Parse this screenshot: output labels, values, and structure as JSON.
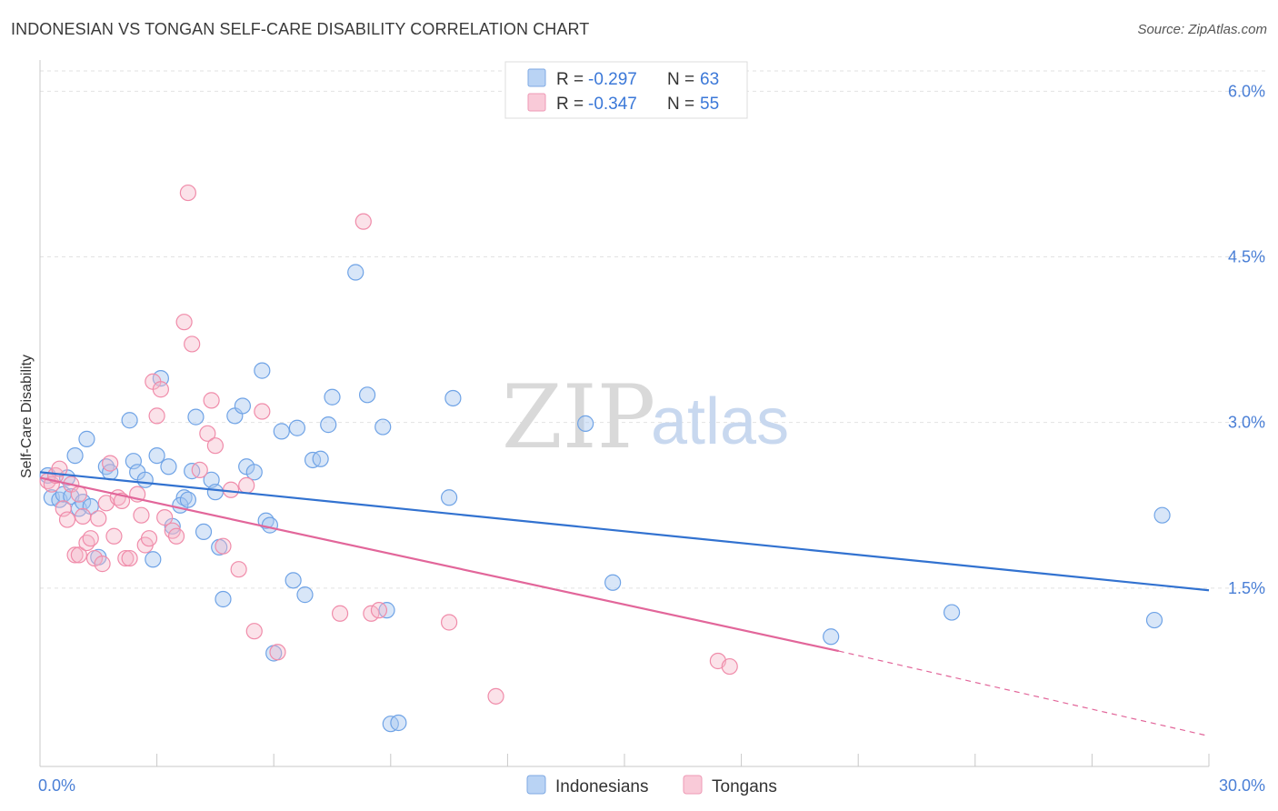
{
  "header": {
    "title": "INDONESIAN VS TONGAN SELF-CARE DISABILITY CORRELATION CHART",
    "source": "Source: ZipAtlas.com"
  },
  "watermark": {
    "zip": "ZIP",
    "atlas": "atlas"
  },
  "legend": {
    "rows": [
      {
        "r_label": "R = ",
        "r_value": "-0.297",
        "n_label": "N = ",
        "n_value": "63",
        "color": "#a9c8f0"
      },
      {
        "r_label": "R = ",
        "r_value": "-0.347",
        "n_label": "N = ",
        "n_value": "55",
        "color": "#f6b6c9"
      }
    ]
  },
  "bottom_legend": {
    "items": [
      "Indonesians",
      "Tongans"
    ]
  },
  "chart_data": {
    "type": "scatter",
    "title": "INDONESIAN VS TONGAN SELF-CARE DISABILITY CORRELATION CHART",
    "xlabel": "",
    "ylabel": "Self-Care Disability",
    "xlim": [
      0,
      30
    ],
    "ylim": [
      0,
      6.25
    ],
    "x_tick_labels": [
      "0.0%",
      "30.0%"
    ],
    "y_ticks": [
      1.5,
      3.0,
      4.5,
      6.0
    ],
    "y_tick_labels": [
      "1.5%",
      "3.0%",
      "4.5%",
      "6.0%"
    ],
    "grid": "horizontal dashed",
    "legend_position": "top-center",
    "colors": {
      "Indonesians": "#6fa3e6",
      "Tongans": "#f08caa",
      "Indonesians_line": "#3272d0",
      "Tongans_line": "#e2669a"
    },
    "series": [
      {
        "name": "Indonesians",
        "r": -0.297,
        "n": 63,
        "trend": {
          "x": [
            0,
            30
          ],
          "y": [
            2.55,
            1.48
          ]
        },
        "points": [
          [
            0.2,
            2.52
          ],
          [
            0.3,
            2.32
          ],
          [
            0.5,
            2.3
          ],
          [
            0.6,
            2.35
          ],
          [
            0.8,
            2.33
          ],
          [
            0.9,
            2.7
          ],
          [
            1.0,
            2.22
          ],
          [
            1.1,
            2.28
          ],
          [
            1.2,
            2.85
          ],
          [
            1.3,
            2.24
          ],
          [
            1.5,
            1.78
          ],
          [
            1.7,
            2.6
          ],
          [
            1.8,
            2.55
          ],
          [
            2.3,
            3.02
          ],
          [
            2.4,
            2.65
          ],
          [
            2.5,
            2.55
          ],
          [
            2.7,
            2.48
          ],
          [
            2.9,
            1.76
          ],
          [
            3.0,
            2.7
          ],
          [
            3.1,
            3.4
          ],
          [
            3.3,
            2.6
          ],
          [
            3.4,
            2.06
          ],
          [
            3.7,
            2.32
          ],
          [
            3.6,
            2.25
          ],
          [
            3.9,
            2.56
          ],
          [
            4.0,
            3.05
          ],
          [
            4.2,
            2.01
          ],
          [
            4.4,
            2.48
          ],
          [
            4.5,
            2.37
          ],
          [
            4.6,
            1.87
          ],
          [
            4.7,
            1.4
          ],
          [
            5.0,
            3.06
          ],
          [
            5.2,
            3.15
          ],
          [
            5.3,
            2.6
          ],
          [
            5.5,
            2.55
          ],
          [
            5.7,
            3.47
          ],
          [
            5.8,
            2.11
          ],
          [
            5.9,
            2.07
          ],
          [
            6.0,
            0.91
          ],
          [
            6.2,
            2.92
          ],
          [
            6.5,
            1.57
          ],
          [
            6.6,
            2.95
          ],
          [
            6.8,
            1.44
          ],
          [
            7.0,
            2.66
          ],
          [
            7.2,
            2.67
          ],
          [
            7.4,
            2.98
          ],
          [
            7.5,
            3.23
          ],
          [
            8.1,
            4.36
          ],
          [
            8.4,
            3.25
          ],
          [
            8.8,
            2.96
          ],
          [
            8.9,
            1.3
          ],
          [
            9.0,
            0.27
          ],
          [
            9.2,
            0.28
          ],
          [
            10.5,
            2.32
          ],
          [
            10.6,
            3.22
          ],
          [
            14.0,
            2.99
          ],
          [
            14.7,
            1.55
          ],
          [
            20.3,
            1.06
          ],
          [
            23.4,
            1.28
          ],
          [
            28.6,
            1.21
          ],
          [
            28.8,
            2.16
          ],
          [
            0.7,
            2.5
          ],
          [
            3.8,
            2.3
          ]
        ]
      },
      {
        "name": "Tongans",
        "r": -0.347,
        "n": 55,
        "trend": {
          "x": [
            0,
            20.5
          ],
          "y": [
            2.5,
            0.93
          ]
        },
        "trend_dashed": {
          "x": [
            20.5,
            30
          ],
          "y": [
            0.93,
            0.16
          ]
        },
        "points": [
          [
            0.2,
            2.47
          ],
          [
            0.3,
            2.44
          ],
          [
            0.4,
            2.52
          ],
          [
            0.5,
            2.58
          ],
          [
            0.6,
            2.22
          ],
          [
            0.7,
            2.12
          ],
          [
            0.8,
            2.44
          ],
          [
            0.9,
            1.8
          ],
          [
            1.0,
            1.8
          ],
          [
            1.1,
            2.15
          ],
          [
            1.2,
            1.91
          ],
          [
            1.3,
            1.95
          ],
          [
            1.4,
            1.77
          ],
          [
            1.5,
            2.13
          ],
          [
            1.6,
            1.72
          ],
          [
            1.7,
            2.27
          ],
          [
            1.8,
            2.63
          ],
          [
            1.9,
            1.97
          ],
          [
            2.0,
            2.32
          ],
          [
            2.1,
            2.29
          ],
          [
            2.2,
            1.77
          ],
          [
            2.3,
            1.77
          ],
          [
            2.5,
            2.35
          ],
          [
            2.6,
            2.16
          ],
          [
            2.7,
            1.89
          ],
          [
            2.8,
            1.95
          ],
          [
            2.9,
            3.37
          ],
          [
            3.0,
            3.06
          ],
          [
            3.1,
            3.3
          ],
          [
            3.2,
            2.14
          ],
          [
            3.4,
            2.02
          ],
          [
            3.5,
            1.97
          ],
          [
            3.7,
            3.91
          ],
          [
            3.8,
            5.08
          ],
          [
            3.9,
            3.71
          ],
          [
            4.1,
            2.57
          ],
          [
            4.3,
            2.9
          ],
          [
            4.4,
            3.2
          ],
          [
            4.5,
            2.79
          ],
          [
            4.7,
            1.88
          ],
          [
            4.9,
            2.39
          ],
          [
            5.1,
            1.67
          ],
          [
            5.3,
            2.43
          ],
          [
            5.5,
            1.11
          ],
          [
            5.7,
            3.1
          ],
          [
            6.1,
            0.92
          ],
          [
            7.7,
            1.27
          ],
          [
            8.3,
            4.82
          ],
          [
            8.5,
            1.27
          ],
          [
            8.7,
            1.3
          ],
          [
            10.5,
            1.19
          ],
          [
            11.7,
            0.52
          ],
          [
            17.4,
            0.84
          ],
          [
            17.7,
            0.79
          ],
          [
            1.0,
            2.35
          ]
        ]
      }
    ]
  }
}
